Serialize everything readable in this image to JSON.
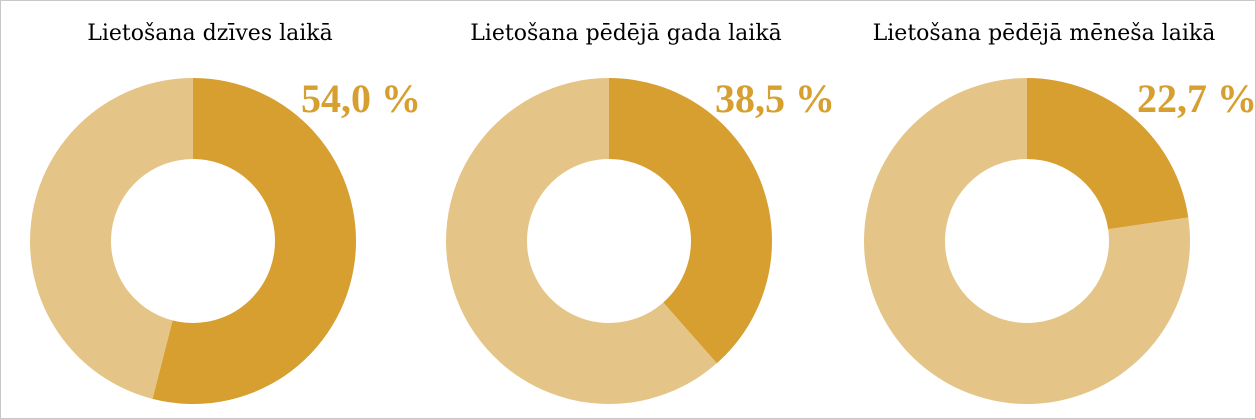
{
  "colors": {
    "primary": "#D69F2F",
    "secondary": "#E4C587",
    "background": "#FFFFFF",
    "label": "#D69F2F"
  },
  "chart_data": [
    {
      "type": "pie",
      "variant": "donut",
      "title": "Lietošana dzīves laikā",
      "value_label": "54,0 %",
      "values": [
        54.0,
        46.0
      ]
    },
    {
      "type": "pie",
      "variant": "donut",
      "title": "Lietošana pēdējā gada laikā",
      "value_label": "38,5 %",
      "values": [
        38.5,
        61.5
      ]
    },
    {
      "type": "pie",
      "variant": "donut",
      "title": "Lietošana pēdējā mēneša laikā",
      "value_label": "22,7 %",
      "values": [
        22.7,
        77.3
      ]
    }
  ]
}
